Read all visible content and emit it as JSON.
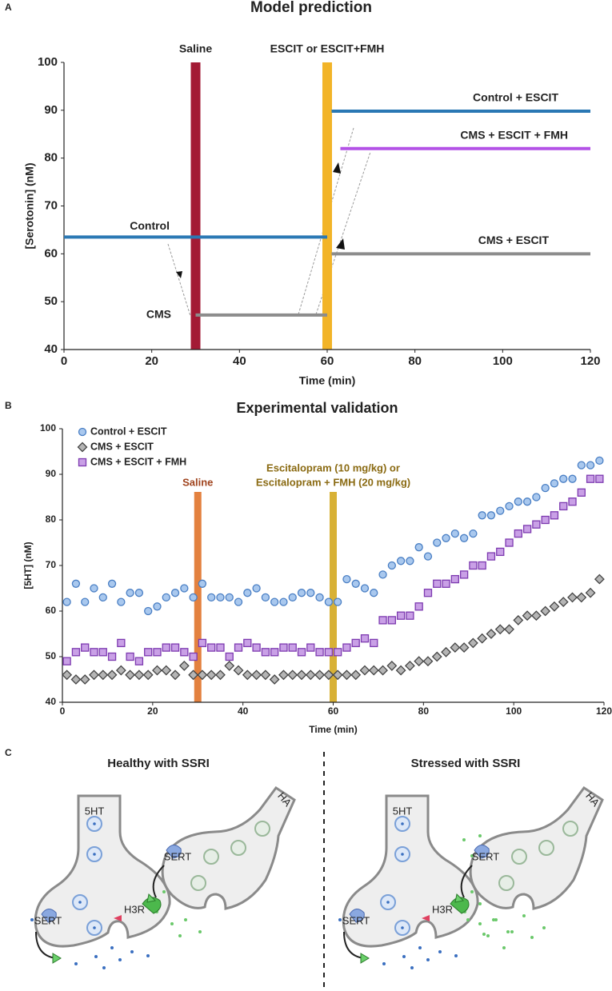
{
  "panel_labels": [
    "A",
    "B",
    "C"
  ],
  "chart_data": [
    {
      "type": "line",
      "title": "Model prediction",
      "x_label": "Time (min)",
      "y_label": "[Serotonin] (nM)",
      "xlim": [
        0,
        120
      ],
      "ylim": [
        40,
        100
      ],
      "xticks": [
        0,
        20,
        40,
        60,
        80,
        100,
        120
      ],
      "yticks": [
        40,
        50,
        60,
        70,
        80,
        90,
        100
      ],
      "series": [
        {
          "name": "Control",
          "color": "#2a78b4",
          "x": [
            0,
            60
          ],
          "values": [
            63.5,
            63.5
          ]
        },
        {
          "name": "CMS",
          "color": "#8c8c8c",
          "x": [
            30,
            60
          ],
          "values": [
            47.2,
            47.2
          ]
        },
        {
          "name": "Control + ESCIT",
          "color": "#2a78b4",
          "x": [
            61,
            120
          ],
          "values": [
            89.8,
            89.8
          ]
        },
        {
          "name": "CMS + ESCIT + FMH",
          "color": "#b352e6",
          "x": [
            63,
            120
          ],
          "values": [
            82,
            82
          ]
        },
        {
          "name": "CMS + ESCIT",
          "color": "#8c8c8c",
          "x": [
            61,
            120
          ],
          "values": [
            60,
            60
          ]
        }
      ],
      "events": [
        {
          "x": 30,
          "label": "Saline",
          "color": "#a31a35",
          "label_color": "#222"
        },
        {
          "x": 60,
          "label": "ESCIT or ESCIT+FMH",
          "color": "#f2b428",
          "label_color": "#222"
        }
      ]
    },
    {
      "type": "scatter",
      "title": "Experimental validation",
      "x_label": "Time (min)",
      "y_label": "[5HT] (nM)",
      "xlim": [
        0,
        120
      ],
      "ylim": [
        40,
        100
      ],
      "xticks": [
        0,
        20,
        40,
        60,
        80,
        100,
        120
      ],
      "yticks": [
        40,
        50,
        60,
        70,
        80,
        90,
        100
      ],
      "x": [
        1,
        3,
        5,
        7,
        9,
        11,
        13,
        15,
        17,
        19,
        21,
        23,
        25,
        27,
        29,
        31,
        33,
        35,
        37,
        39,
        41,
        43,
        45,
        47,
        49,
        51,
        53,
        55,
        57,
        59,
        61,
        63,
        65,
        67,
        69,
        71,
        73,
        75,
        77,
        79,
        81,
        83,
        85,
        87,
        89,
        91,
        93,
        95,
        97,
        99,
        101,
        103,
        105,
        107,
        109,
        111,
        113,
        115,
        117,
        119
      ],
      "series": [
        {
          "name": "Control + ESCIT",
          "color": "#a9c8ee",
          "stroke": "#4a7fc4",
          "marker": "circle",
          "values": [
            62,
            66,
            62,
            65,
            63,
            66,
            62,
            64,
            64,
            60,
            61,
            63,
            64,
            65,
            63,
            66,
            63,
            63,
            63,
            62,
            64,
            65,
            63,
            62,
            62,
            63,
            64,
            64,
            63,
            62,
            62,
            67,
            66,
            65,
            64,
            68,
            70,
            71,
            71,
            74,
            72,
            75,
            76,
            77,
            76,
            77,
            81,
            81,
            82,
            83,
            84,
            84,
            85,
            87,
            88,
            89,
            89,
            92,
            92,
            93
          ]
        },
        {
          "name": "CMS + ESCIT",
          "color": "#b5b5b5",
          "stroke": "#444444",
          "marker": "diamond",
          "values": [
            46,
            45,
            45,
            46,
            46,
            46,
            47,
            46,
            46,
            46,
            47,
            47,
            46,
            48,
            46,
            46,
            46,
            46,
            48,
            47,
            46,
            46,
            46,
            45,
            46,
            46,
            46,
            46,
            46,
            46,
            46,
            46,
            46,
            47,
            47,
            47,
            48,
            47,
            48,
            49,
            49,
            50,
            51,
            52,
            52,
            53,
            54,
            55,
            56,
            56,
            58,
            59,
            59,
            60,
            61,
            62,
            63,
            63,
            64,
            67
          ]
        },
        {
          "name": "CMS + ESCIT + FMH",
          "color": "#c9a0e6",
          "stroke": "#7d3ab0",
          "marker": "square",
          "values": [
            49,
            51,
            52,
            51,
            51,
            50,
            53,
            50,
            49,
            51,
            51,
            52,
            52,
            51,
            50,
            53,
            52,
            52,
            50,
            52,
            53,
            52,
            51,
            51,
            52,
            52,
            51,
            52,
            51,
            51,
            51,
            52,
            53,
            54,
            53,
            58,
            58,
            59,
            59,
            61,
            64,
            66,
            66,
            67,
            68,
            70,
            70,
            72,
            73,
            75,
            77,
            78,
            79,
            80,
            81,
            83,
            84,
            86,
            89,
            89
          ]
        }
      ],
      "events": [
        {
          "x": 30,
          "label": [
            "Saline"
          ],
          "color": "#e0732a",
          "label_color": "#a0441e"
        },
        {
          "x": 60,
          "label": [
            "Escitalopram (10 mg/kg) or",
            "Escitalopram + FMH (20 mg/kg)"
          ],
          "color": "#d4a820",
          "label_color": "#8a6a12"
        }
      ]
    }
  ],
  "panel_c": {
    "left": {
      "title": "Healthy with SSRI",
      "labels": [
        "5HT",
        "HA",
        "SERT",
        "SERT",
        "H3R"
      ]
    },
    "right": {
      "title": "Stressed with SSRI",
      "labels": [
        "5HT",
        "HA",
        "SERT",
        "SERT",
        "H3R"
      ]
    }
  }
}
